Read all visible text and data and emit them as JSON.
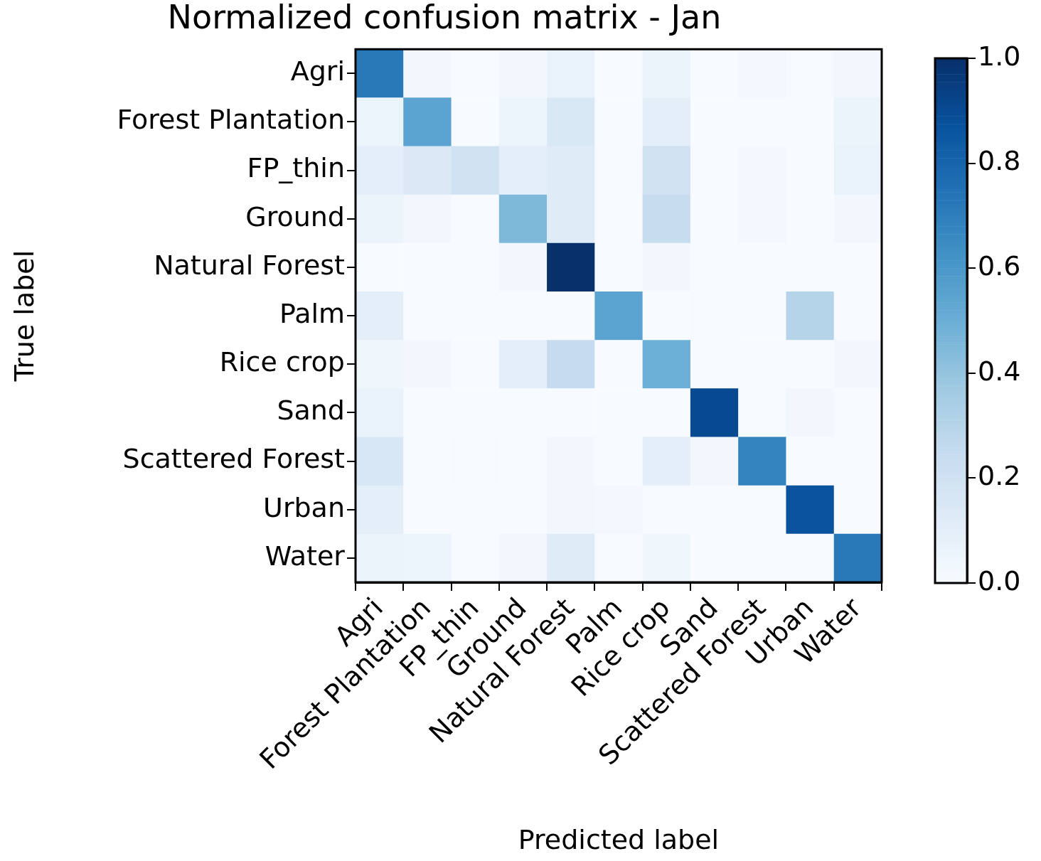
{
  "chart_data": {
    "type": "heatmap",
    "title": "Normalized confusion matrix - Jan",
    "xlabel": "Predicted label",
    "ylabel": "True label",
    "categories": [
      "Agri",
      "Forest Plantation",
      "FP_thin",
      "Ground",
      "Natural Forest",
      "Palm",
      "Rice crop",
      "Sand",
      "Scattered Forest",
      "Urban",
      "Water"
    ],
    "y_categories": [
      "Agri",
      "Forest Plantation",
      "FP_thin",
      "Ground",
      "Natural Forest",
      "Palm",
      "Rice crop",
      "Sand",
      "Scattered Forest",
      "Urban",
      "Water"
    ],
    "cells": [
      [
        0.72,
        0.03,
        0.0,
        0.03,
        0.07,
        0.0,
        0.06,
        0.0,
        0.02,
        0.01,
        0.03
      ],
      [
        0.05,
        0.55,
        0.0,
        0.05,
        0.15,
        0.0,
        0.1,
        0.0,
        0.0,
        0.0,
        0.06
      ],
      [
        0.1,
        0.14,
        0.2,
        0.1,
        0.12,
        0.0,
        0.2,
        0.0,
        0.02,
        0.0,
        0.07
      ],
      [
        0.06,
        0.03,
        0.0,
        0.45,
        0.12,
        0.0,
        0.24,
        0.0,
        0.02,
        0.0,
        0.03
      ],
      [
        0.0,
        0.0,
        0.0,
        0.03,
        1.0,
        0.0,
        0.03,
        0.0,
        0.0,
        0.0,
        0.0
      ],
      [
        0.1,
        0.0,
        0.0,
        0.0,
        0.0,
        0.55,
        0.0,
        0.01,
        0.0,
        0.3,
        0.0
      ],
      [
        0.04,
        0.03,
        0.0,
        0.1,
        0.25,
        0.0,
        0.5,
        0.0,
        0.0,
        0.0,
        0.03
      ],
      [
        0.07,
        0.0,
        0.0,
        0.0,
        0.0,
        0.0,
        0.0,
        0.9,
        0.01,
        0.03,
        0.0
      ],
      [
        0.16,
        0.0,
        0.01,
        0.0,
        0.03,
        0.0,
        0.1,
        0.03,
        0.68,
        0.0,
        0.0
      ],
      [
        0.1,
        0.0,
        0.0,
        0.0,
        0.03,
        0.02,
        0.0,
        0.0,
        0.0,
        0.87,
        0.0
      ],
      [
        0.06,
        0.05,
        0.0,
        0.03,
        0.12,
        0.0,
        0.04,
        0.0,
        0.0,
        0.0,
        0.72
      ]
    ],
    "clim": [
      0,
      1
    ],
    "cticks": [
      {
        "value": 0,
        "label": "0.0"
      },
      {
        "value": 0.2,
        "label": "0.2"
      },
      {
        "value": 0.4,
        "label": "0.4"
      },
      {
        "value": 0.6,
        "label": "0.6"
      },
      {
        "value": 0.8,
        "label": "0.8"
      },
      {
        "value": 1,
        "label": "1.0"
      }
    ]
  }
}
